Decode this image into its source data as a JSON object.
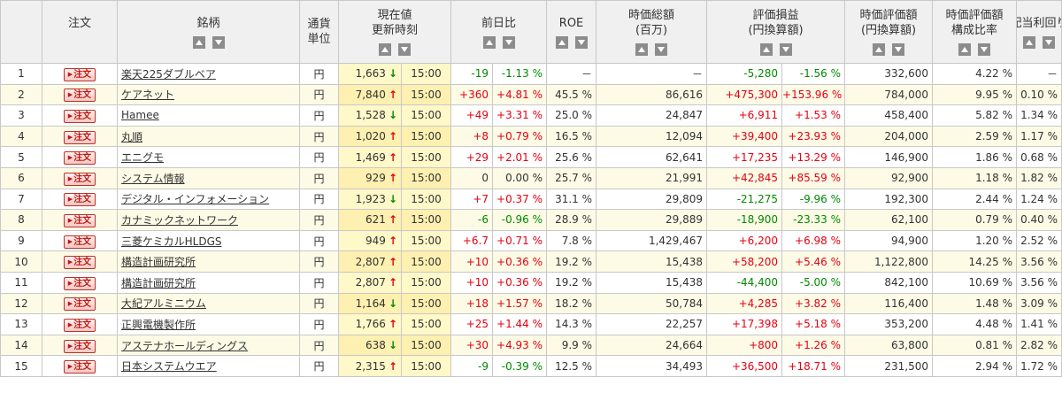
{
  "headers": {
    "order": "注文",
    "name": "銘柄",
    "currency_1": "通貨",
    "currency_2": "単位",
    "price_1": "現在値",
    "price_2": "更新時刻",
    "change": "前日比",
    "roe": "ROE",
    "mcap_1": "時価総額",
    "mcap_2": "(百万)",
    "pl_1": "評価損益",
    "pl_2": "(円換算額)",
    "value_1": "時価評価額",
    "value_2": "(円換算額)",
    "ratio_1": "時価評価額",
    "ratio_2": "構成比率",
    "dividend": "配当利回り"
  },
  "order_label": "注文",
  "rows": [
    {
      "no": "1",
      "name": "楽天225ダブルベア",
      "cur": "円",
      "price": "1,663",
      "dir": "down",
      "time": "15:00",
      "chg": "-19",
      "chgp": "-1.13 %",
      "roe": "－",
      "mcap": "－",
      "pl": "-5,280",
      "plp": "-1.56 %",
      "val": "332,600",
      "ratio": "4.22 %",
      "div": "－"
    },
    {
      "no": "2",
      "name": "ケアネット",
      "cur": "円",
      "price": "7,840",
      "dir": "up",
      "time": "15:00",
      "chg": "+360",
      "chgp": "+4.81 %",
      "roe": "45.5 %",
      "mcap": "86,616",
      "pl": "+475,300",
      "plp": "+153.96 %",
      "val": "784,000",
      "ratio": "9.95 %",
      "div": "0.10 %"
    },
    {
      "no": "3",
      "name": "Hamee",
      "cur": "円",
      "price": "1,528",
      "dir": "down",
      "time": "15:00",
      "chg": "+49",
      "chgp": "+3.31 %",
      "roe": "25.0 %",
      "mcap": "24,847",
      "pl": "+6,911",
      "plp": "+1.53 %",
      "val": "458,400",
      "ratio": "5.82 %",
      "div": "1.34 %"
    },
    {
      "no": "4",
      "name": "丸順",
      "cur": "円",
      "price": "1,020",
      "dir": "up",
      "time": "15:00",
      "chg": "+8",
      "chgp": "+0.79 %",
      "roe": "16.5 %",
      "mcap": "12,094",
      "pl": "+39,400",
      "plp": "+23.93 %",
      "val": "204,000",
      "ratio": "2.59 %",
      "div": "1.17 %"
    },
    {
      "no": "5",
      "name": "エニグモ",
      "cur": "円",
      "price": "1,469",
      "dir": "up",
      "time": "15:00",
      "chg": "+29",
      "chgp": "+2.01 %",
      "roe": "25.6 %",
      "mcap": "62,641",
      "pl": "+17,235",
      "plp": "+13.29 %",
      "val": "146,900",
      "ratio": "1.86 %",
      "div": "0.68 %"
    },
    {
      "no": "6",
      "name": "システム情報",
      "cur": "円",
      "price": "929",
      "dir": "up",
      "time": "15:00",
      "chg": "0",
      "chgp": "0.00 %",
      "roe": "25.7 %",
      "mcap": "21,991",
      "pl": "+42,845",
      "plp": "+85.59 %",
      "val": "92,900",
      "ratio": "1.18 %",
      "div": "1.82 %"
    },
    {
      "no": "7",
      "name": "デジタル・インフォメーション",
      "cur": "円",
      "price": "1,923",
      "dir": "down",
      "time": "15:00",
      "chg": "+7",
      "chgp": "+0.37 %",
      "roe": "31.1 %",
      "mcap": "29,809",
      "pl": "-21,275",
      "plp": "-9.96 %",
      "val": "192,300",
      "ratio": "2.44 %",
      "div": "1.24 %"
    },
    {
      "no": "8",
      "name": "カナミックネットワーク",
      "cur": "円",
      "price": "621",
      "dir": "up",
      "time": "15:00",
      "chg": "-6",
      "chgp": "-0.96 %",
      "roe": "28.9 %",
      "mcap": "29,889",
      "pl": "-18,900",
      "plp": "-23.33 %",
      "val": "62,100",
      "ratio": "0.79 %",
      "div": "0.40 %"
    },
    {
      "no": "9",
      "name": "三菱ケミカルHLDGS",
      "cur": "円",
      "price": "949",
      "dir": "up",
      "time": "15:00",
      "chg": "+6.7",
      "chgp": "+0.71 %",
      "roe": "7.8 %",
      "mcap": "1,429,467",
      "pl": "+6,200",
      "plp": "+6.98 %",
      "val": "94,900",
      "ratio": "1.20 %",
      "div": "2.52 %"
    },
    {
      "no": "10",
      "name": "構造計画研究所",
      "cur": "円",
      "price": "2,807",
      "dir": "up",
      "time": "15:00",
      "chg": "+10",
      "chgp": "+0.36 %",
      "roe": "19.2 %",
      "mcap": "15,438",
      "pl": "+58,200",
      "plp": "+5.46 %",
      "val": "1,122,800",
      "ratio": "14.25 %",
      "div": "3.56 %"
    },
    {
      "no": "11",
      "name": "構造計画研究所",
      "cur": "円",
      "price": "2,807",
      "dir": "up",
      "time": "15:00",
      "chg": "+10",
      "chgp": "+0.36 %",
      "roe": "19.2 %",
      "mcap": "15,438",
      "pl": "-44,400",
      "plp": "-5.00 %",
      "val": "842,100",
      "ratio": "10.69 %",
      "div": "3.56 %"
    },
    {
      "no": "12",
      "name": "大紀アルミニウム",
      "cur": "円",
      "price": "1,164",
      "dir": "down",
      "time": "15:00",
      "chg": "+18",
      "chgp": "+1.57 %",
      "roe": "18.2 %",
      "mcap": "50,784",
      "pl": "+4,285",
      "plp": "+3.82 %",
      "val": "116,400",
      "ratio": "1.48 %",
      "div": "3.09 %"
    },
    {
      "no": "13",
      "name": "正興電機製作所",
      "cur": "円",
      "price": "1,766",
      "dir": "up",
      "time": "15:00",
      "chg": "+25",
      "chgp": "+1.44 %",
      "roe": "14.3 %",
      "mcap": "22,257",
      "pl": "+17,398",
      "plp": "+5.18 %",
      "val": "353,200",
      "ratio": "4.48 %",
      "div": "1.41 %"
    },
    {
      "no": "14",
      "name": "アステナホールディングス",
      "cur": "円",
      "price": "638",
      "dir": "down",
      "time": "15:00",
      "chg": "+30",
      "chgp": "+4.93 %",
      "roe": "9.9 %",
      "mcap": "24,664",
      "pl": "+800",
      "plp": "+1.26 %",
      "val": "63,800",
      "ratio": "0.81 %",
      "div": "2.82 %"
    },
    {
      "no": "15",
      "name": "日本システムウエア",
      "cur": "円",
      "price": "2,315",
      "dir": "up",
      "time": "15:00",
      "chg": "-9",
      "chgp": "-0.39 %",
      "roe": "12.5 %",
      "mcap": "34,493",
      "pl": "+36,500",
      "plp": "+18.71 %",
      "val": "231,500",
      "ratio": "2.94 %",
      "div": "1.72 %"
    }
  ]
}
